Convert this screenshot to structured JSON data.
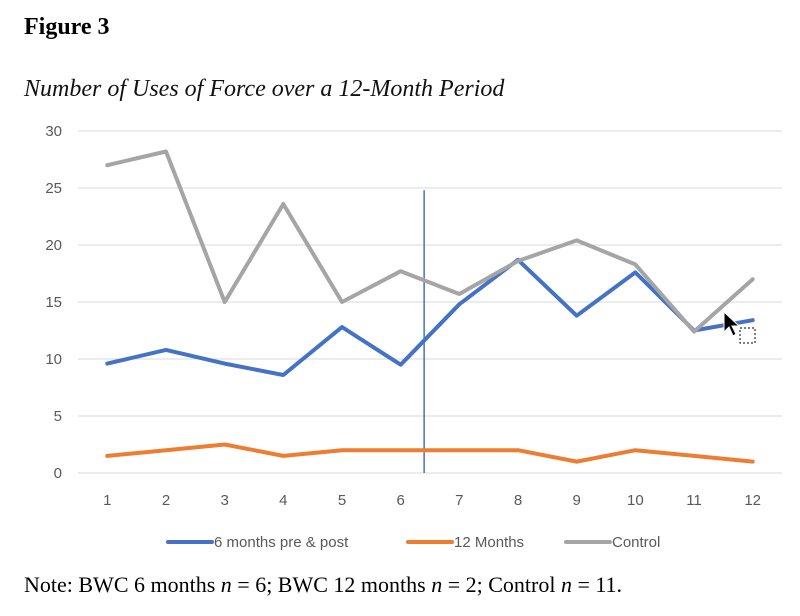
{
  "figure_label": "Figure 3",
  "note": {
    "prefix": "Note: BWC 6 months ",
    "n1_var": "n",
    "n1_val": " = 6; BWC 12 months ",
    "n2_var": "n",
    "n2_val": " = 2; Control ",
    "n3_var": "n",
    "n3_val": " = 11."
  },
  "chart_data": {
    "type": "line",
    "title": "Number of Uses of Force over a 12-Month Period",
    "xlabel": "",
    "ylabel": "",
    "categories": [
      "1",
      "2",
      "3",
      "4",
      "5",
      "6",
      "7",
      "8",
      "9",
      "10",
      "11",
      "12"
    ],
    "ylim": [
      0,
      30
    ],
    "yticks": [
      0,
      5,
      10,
      15,
      20,
      25,
      30
    ],
    "grid": true,
    "legend_position": "bottom",
    "series": [
      {
        "name": "6 months pre & post",
        "color": "#4472C4",
        "values": [
          9.6,
          10.8,
          9.6,
          8.6,
          12.8,
          9.5,
          14.8,
          18.7,
          13.8,
          17.6,
          12.5,
          13.4
        ]
      },
      {
        "name": "12 Months",
        "color": "#ED7D31",
        "values": [
          1.5,
          2.0,
          2.5,
          1.5,
          2.0,
          2.0,
          2.0,
          2.0,
          1.0,
          2.0,
          1.5,
          1.0
        ]
      },
      {
        "name": "Control",
        "color": "#A5A5A5",
        "values": [
          27.0,
          28.2,
          15.0,
          23.6,
          15.0,
          17.7,
          15.7,
          18.6,
          20.4,
          18.3,
          12.4,
          17.0
        ]
      }
    ],
    "annotations": [
      {
        "type": "vertical-line",
        "x": 6.4,
        "y_from": 0,
        "y_to": 24.8,
        "color": "#4472C4"
      }
    ]
  }
}
